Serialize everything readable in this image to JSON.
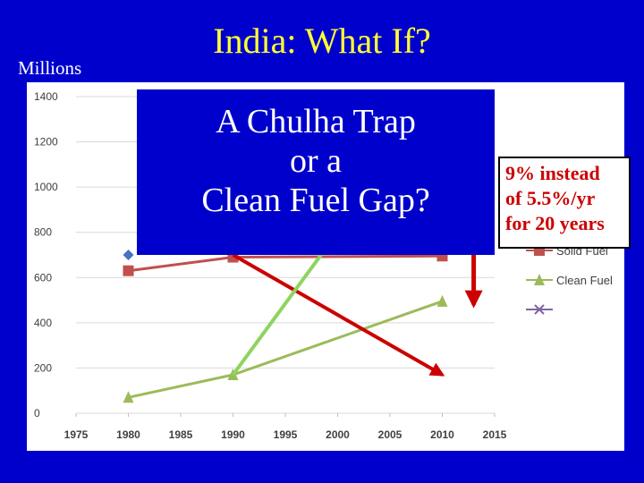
{
  "slide": {
    "title": "India: What If?",
    "units": "Millions"
  },
  "overlay": {
    "lines": [
      "A Chulha Trap",
      "or a",
      "Clean Fuel Gap?"
    ]
  },
  "callout": {
    "lines": [
      "9% instead",
      "of 5.5%/yr",
      "for 20 years"
    ]
  },
  "chart_data": {
    "type": "line",
    "xlim": [
      1975,
      2015
    ],
    "ylim": [
      0,
      1400
    ],
    "x_ticks": [
      1975,
      1980,
      1985,
      1990,
      1995,
      2000,
      2005,
      2010,
      2015
    ],
    "y_ticks": [
      0,
      200,
      400,
      600,
      800,
      1000,
      1200,
      1400
    ],
    "grid": "horizontal",
    "legend_position": "right",
    "series": [
      {
        "name": "",
        "color": "#4472c4",
        "marker": "diamond",
        "x": [
          1980
        ],
        "y": [
          700
        ]
      },
      {
        "name": "Solid Fuel",
        "color": "#c0504d",
        "marker": "square",
        "x": [
          1980,
          1990,
          2010
        ],
        "y": [
          630,
          690,
          695
        ]
      },
      {
        "name": "Clean Fuel",
        "color": "#9bbb59",
        "marker": "triangle",
        "x": [
          1980,
          1990,
          2010
        ],
        "y": [
          70,
          170,
          495
        ]
      },
      {
        "name": "",
        "color": "#8064a2",
        "marker": "x",
        "x": [],
        "y": []
      }
    ],
    "annotations": [
      {
        "kind": "arrow",
        "color": "#cc0000",
        "from": [
          1990,
          700
        ],
        "to": [
          2010,
          170
        ]
      },
      {
        "kind": "line",
        "color": "#8ed45e",
        "from": [
          1990,
          170
        ],
        "to": [
          2000,
          800
        ]
      },
      {
        "kind": "arrow",
        "color": "#cc0000",
        "from_x": 2013,
        "from_y": 900,
        "to_y": 480
      }
    ]
  }
}
